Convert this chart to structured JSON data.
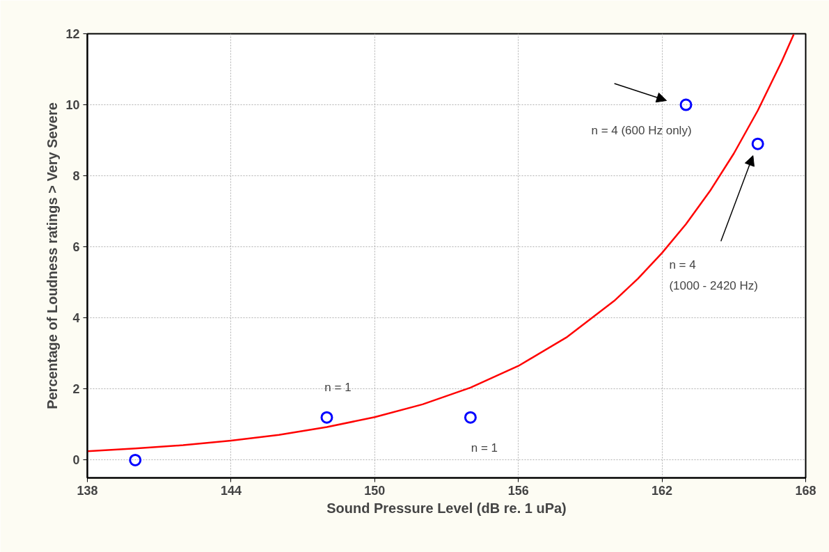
{
  "chart_data": {
    "type": "scatter",
    "xlabel": "Sound Pressure Level (dB re. 1 uPa)",
    "ylabel": "Percentage of Loudness ratings > Very Severe",
    "xlim": [
      138,
      168
    ],
    "xticks": [
      138,
      144,
      150,
      156,
      162,
      168
    ],
    "ylim": [
      -0.5,
      12
    ],
    "yticks": [
      0,
      2,
      4,
      6,
      8,
      10,
      12
    ],
    "grid": true,
    "marker": "circle",
    "series": [
      {
        "color": "#0000ff",
        "x": [
          140,
          148,
          154,
          163,
          166
        ],
        "values": [
          0,
          1.2,
          1.2,
          10,
          8.9
        ]
      },
      {
        "type": "line",
        "color": "#ff0000",
        "line_style": "solid",
        "marker": "none",
        "x": [
          138,
          140,
          142,
          144,
          146,
          148,
          150,
          152,
          154,
          156,
          158,
          160,
          161,
          162,
          163,
          164,
          165,
          166,
          167,
          167.5
        ],
        "values": [
          0.25,
          0.33,
          0.42,
          0.55,
          0.71,
          0.93,
          1.21,
          1.57,
          2.04,
          2.65,
          3.45,
          4.48,
          5.11,
          5.83,
          6.64,
          7.57,
          8.63,
          9.84,
          11.22,
          11.98
        ]
      }
    ],
    "annotations": [
      {
        "text": "n = 4 (600 Hz only)",
        "x": 163,
        "y": 10
      },
      "n = 4\n(1000 - 2420 Hz)",
      {
        "text": "n = 1",
        "x": 148,
        "y": 1.2
      },
      {
        "text": "n = 1",
        "x": 154,
        "y": 1.2
      }
    ]
  }
}
